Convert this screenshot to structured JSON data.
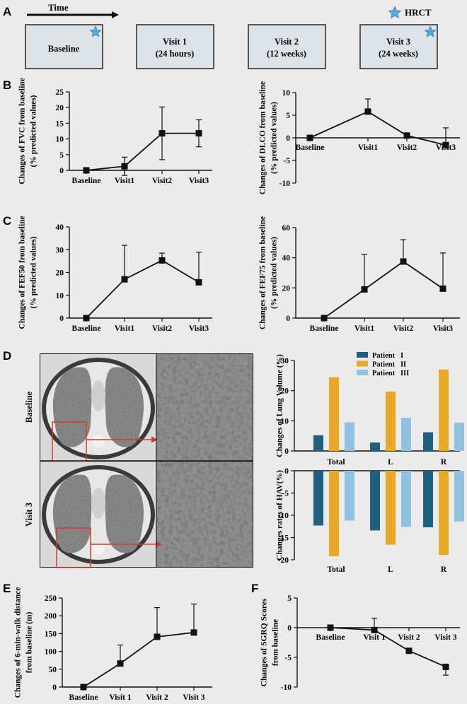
{
  "panel_labels": [
    "A",
    "B",
    "C",
    "D",
    "E",
    "F"
  ],
  "timeline": {
    "arrow_label": "Time",
    "legend_label": "HRCT",
    "boxes": [
      {
        "line1": "Baseline",
        "line2": "",
        "hrct": true
      },
      {
        "line1": "Visit 1",
        "line2": "(24 hours)",
        "hrct": false
      },
      {
        "line1": "Visit 2",
        "line2": "(12 weeks)",
        "hrct": false
      },
      {
        "line1": "Visit 3",
        "line2": "(24 weeks)",
        "hrct": true
      }
    ]
  },
  "images": {
    "row_labels": [
      "Baseline",
      "Visit 3"
    ]
  },
  "colors": {
    "patient1": "#1f5f7f",
    "patient2": "#eaa827",
    "patient3": "#8fc3e0",
    "box_fill": "#dce4ea",
    "star": "#5aa7dc"
  },
  "chart_data": [
    {
      "id": "fvc",
      "panel": "B",
      "type": "line",
      "ylabel": [
        "Changes of FVC from baseline",
        "(% predicted values)"
      ],
      "categories": [
        "Baseline",
        "Visit1",
        "Visit2",
        "Visit3"
      ],
      "values": [
        0,
        1.3,
        11.8,
        11.8
      ],
      "err_upper": [
        0,
        2.9,
        8.4,
        4.3
      ],
      "err_lower": [
        0,
        2.9,
        8.4,
        4.3
      ],
      "ylim": [
        0,
        25
      ],
      "yticks": [
        0,
        5,
        10,
        15,
        20,
        25
      ],
      "xaxis": "bottom"
    },
    {
      "id": "dlco",
      "panel": "B",
      "type": "line",
      "ylabel": [
        "Changes of DLCO from baseline",
        "(% predicted values)"
      ],
      "categories": [
        "Baseline",
        "Visit1",
        "Visit2",
        "Visit3"
      ],
      "values": [
        0,
        5.8,
        0.5,
        -1.6
      ],
      "err_upper": [
        0,
        2.8,
        0,
        3.8
      ],
      "err_lower": [
        0,
        0,
        0,
        0
      ],
      "ylim": [
        -10,
        10
      ],
      "yticks": [
        -10,
        -5,
        0,
        5,
        10
      ],
      "xaxis": "zero"
    },
    {
      "id": "fef50",
      "panel": "C",
      "type": "line",
      "ylabel": [
        "Changes of FEF50 from baseline",
        "(% predicted values)"
      ],
      "categories": [
        "Baseline",
        "Visit1",
        "Visit2",
        "Visit3"
      ],
      "values": [
        0,
        17,
        25.3,
        15.7
      ],
      "err_upper": [
        0,
        14.9,
        3.2,
        13.2
      ],
      "err_lower": [
        0,
        0,
        0,
        0
      ],
      "ylim": [
        0,
        40
      ],
      "yticks": [
        0,
        10,
        20,
        30,
        40
      ],
      "xaxis": "bottom"
    },
    {
      "id": "fef75",
      "panel": "C",
      "type": "line",
      "ylabel": [
        "Changes of FEF75 from baseline",
        "(% predicted values)"
      ],
      "categories": [
        "Baseline",
        "Visit1",
        "Visit2",
        "Visit3"
      ],
      "values": [
        0,
        19,
        37.5,
        19.5
      ],
      "err_upper": [
        0,
        23.2,
        14.5,
        23.7
      ],
      "err_lower": [
        0,
        0,
        0,
        0
      ],
      "ylim": [
        0,
        60
      ],
      "yticks": [
        0,
        20,
        40,
        60
      ],
      "xaxis": "bottom"
    },
    {
      "id": "lungvol",
      "panel": "D",
      "type": "bar",
      "ylabel": [
        "Changes of Lung Volume (%)"
      ],
      "categories": [
        "Total",
        "L",
        "R"
      ],
      "series": [
        {
          "name": "Patient   I",
          "values": [
            5.2,
            2.8,
            6.2
          ]
        },
        {
          "name": "Patient   II",
          "values": [
            24.5,
            19.7,
            27
          ]
        },
        {
          "name": "Patient   III",
          "values": [
            9.5,
            11,
            9.4
          ]
        }
      ],
      "ylim": [
        0,
        30
      ],
      "yticks": [
        0,
        10,
        20,
        30
      ],
      "legend": "top-right"
    },
    {
      "id": "hav",
      "panel": "D",
      "type": "bar",
      "ylabel": [
        "Changes rates of HAV(%)"
      ],
      "categories": [
        "Total",
        "L",
        "R"
      ],
      "series": [
        {
          "name": "Patient   I",
          "values": [
            -12.3,
            -13.4,
            -12.7
          ]
        },
        {
          "name": "Patient   II",
          "values": [
            -19.2,
            -16.6,
            -18.9
          ]
        },
        {
          "name": "Patient   III",
          "values": [
            -11.2,
            -12.6,
            -11.4
          ]
        }
      ],
      "ylim": [
        -20,
        0
      ],
      "yticks": [
        -20,
        -15,
        -10,
        -5,
        0
      ]
    },
    {
      "id": "walk",
      "panel": "E",
      "type": "line",
      "ylabel": [
        "Changes of 6-min-walk distance",
        "from baseline (m)"
      ],
      "categories": [
        "Baseline",
        "Visit 1",
        "Visit 2",
        "Visit 3"
      ],
      "values": [
        0,
        66,
        141,
        153
      ],
      "err_upper": [
        0,
        52,
        82,
        80
      ],
      "err_lower": [
        0,
        0,
        0,
        0
      ],
      "ylim": [
        0,
        250
      ],
      "yticks": [
        0,
        50,
        100,
        150,
        200,
        250
      ],
      "xaxis": "bottom"
    },
    {
      "id": "sgrq",
      "panel": "F",
      "type": "line",
      "ylabel": [
        "Changes of SGRQ Scores",
        "from baseline"
      ],
      "categories": [
        "Baseline",
        "Visit 1",
        "Visit 2",
        "Visit 3"
      ],
      "values": [
        0,
        -0.4,
        -3.9,
        -6.6
      ],
      "err_upper": [
        0,
        2,
        0,
        0
      ],
      "err_lower": [
        0,
        0,
        0.4,
        1.4
      ],
      "ylim": [
        -10,
        5
      ],
      "yticks": [
        -10,
        -5,
        0,
        5
      ],
      "xaxis": "zero"
    }
  ]
}
